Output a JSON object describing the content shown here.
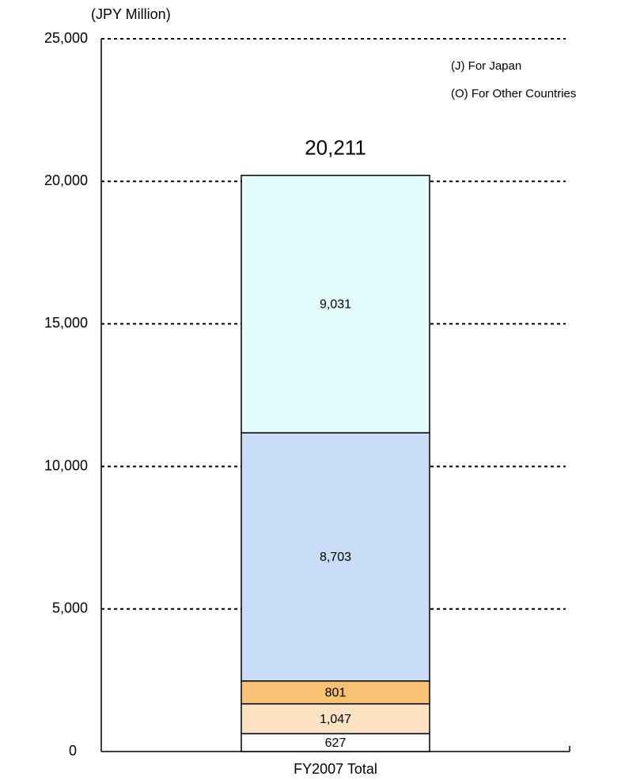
{
  "chart_data": {
    "type": "stacked_bar",
    "y_unit_label": "(JPY Million)",
    "annotations": [
      "(J)  For Japan",
      "(O) For Other Countries"
    ],
    "categories": [
      "FY2007 Total"
    ],
    "series": [
      {
        "color": "#ffffff",
        "values": [
          627
        ],
        "value_labels": [
          "627"
        ]
      },
      {
        "color": "#fde2c4",
        "values": [
          1047
        ],
        "value_labels": [
          "1,047"
        ]
      },
      {
        "color": "#f8c173",
        "values": [
          801
        ],
        "value_labels": [
          "801"
        ]
      },
      {
        "color": "#c9dcf5",
        "values": [
          8703
        ],
        "value_labels": [
          "8,703"
        ]
      },
      {
        "color": "#e2fbfb",
        "values": [
          9031
        ],
        "value_labels": [
          "9,031"
        ]
      }
    ],
    "total": 20211,
    "total_label": "20,211",
    "ylim": [
      0,
      25000
    ],
    "yticks": [
      0,
      {
        "value": 5000,
        "label": "5,000"
      },
      {
        "value": 10000,
        "label": "10,000"
      },
      {
        "value": 15000,
        "label": "15,000"
      },
      {
        "value": 20000,
        "label": "20,000"
      },
      {
        "value": 25000,
        "label": "25,000"
      }
    ],
    "grid": true
  }
}
